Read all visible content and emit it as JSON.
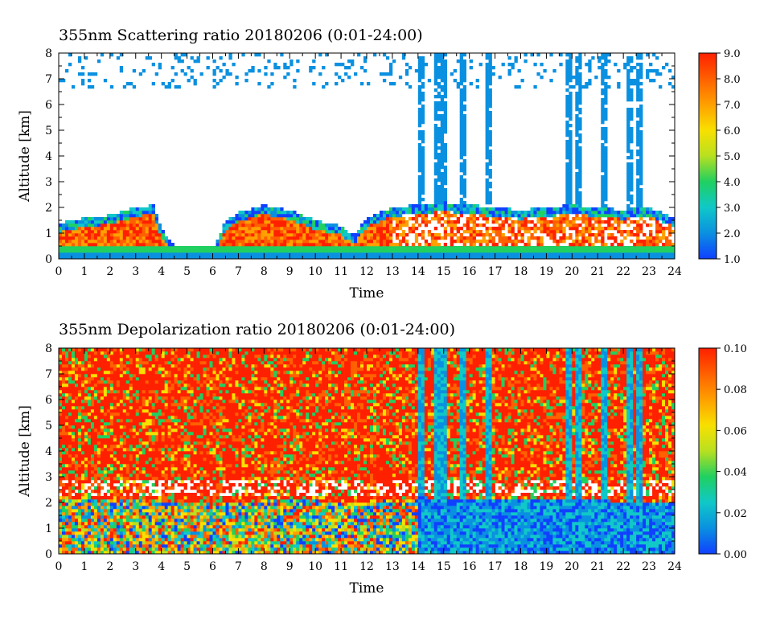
{
  "figure": {
    "panels": [
      {
        "title": "355nm Scattering ratio  20180206 (0:01-24:00)",
        "xlabel": "Time",
        "ylabel": "Altitude [km]"
      },
      {
        "title": "355nm Depolarization ratio  20180206 (0:01-24:00)",
        "xlabel": "Time",
        "ylabel": "Altitude [km]"
      }
    ]
  },
  "chart_data": [
    {
      "type": "heatmap",
      "title": "355nm Scattering ratio  20180206 (0:01-24:00)",
      "xlabel": "Time",
      "ylabel": "Altitude [km]",
      "xlim": [
        0,
        24
      ],
      "ylim": [
        0,
        8
      ],
      "x_ticks": [
        "0",
        "1",
        "2",
        "3",
        "4",
        "5",
        "6",
        "7",
        "8",
        "9",
        "10",
        "11",
        "12",
        "13",
        "14",
        "15",
        "16",
        "17",
        "18",
        "19",
        "20",
        "21",
        "22",
        "23",
        "24"
      ],
      "y_ticks": [
        "0",
        "1",
        "2",
        "3",
        "4",
        "5",
        "6",
        "7",
        "8"
      ],
      "colorbar": {
        "range": [
          1.0,
          9.0
        ],
        "tick_labels": [
          "1.0",
          "2.0",
          "3.0",
          "4.0",
          "5.0",
          "6.0",
          "7.0",
          "8.0",
          "9.0"
        ],
        "colors": [
          "#1040ff",
          "#0a90e0",
          "#10c8c8",
          "#20d060",
          "#b8e020",
          "#f8e000",
          "#ffa000",
          "#ff6000",
          "#ff2000"
        ]
      },
      "features": {
        "boundary_layer_top_km": [
          [
            0,
            1.4
          ],
          [
            1,
            1.6
          ],
          [
            2,
            1.7
          ],
          [
            3,
            2.0
          ],
          [
            3.7,
            2.1
          ],
          [
            4,
            1.2
          ],
          [
            4.5,
            0.5
          ],
          [
            5,
            0.3
          ],
          [
            6,
            0.3
          ],
          [
            6.5,
            1.5
          ],
          [
            7,
            1.8
          ],
          [
            8,
            2.1
          ],
          [
            9,
            1.9
          ],
          [
            10,
            1.5
          ],
          [
            11,
            1.3
          ],
          [
            11.5,
            0.9
          ],
          [
            12,
            1.6
          ],
          [
            13,
            2.0
          ],
          [
            14,
            2.1
          ],
          [
            15,
            2.2
          ],
          [
            16,
            2.1
          ],
          [
            17,
            2.0
          ],
          [
            18,
            1.9
          ],
          [
            19,
            2.0
          ],
          [
            20,
            2.1
          ],
          [
            21,
            2.0
          ],
          [
            22,
            1.9
          ],
          [
            23,
            2.0
          ],
          [
            24,
            1.6
          ]
        ],
        "high_altitude_streaks_hours": [
          14.1,
          14.7,
          15.05,
          15.7,
          16.8,
          19.9,
          20.3,
          21.2,
          22.2,
          22.6
        ]
      }
    },
    {
      "type": "heatmap",
      "title": "355nm Depolarization ratio  20180206 (0:01-24:00)",
      "xlabel": "Time",
      "ylabel": "Altitude [km]",
      "xlim": [
        0,
        24
      ],
      "ylim": [
        0,
        8
      ],
      "x_ticks": [
        "0",
        "1",
        "2",
        "3",
        "4",
        "5",
        "6",
        "7",
        "8",
        "9",
        "10",
        "11",
        "12",
        "13",
        "14",
        "15",
        "16",
        "17",
        "18",
        "19",
        "20",
        "21",
        "22",
        "23",
        "24"
      ],
      "y_ticks": [
        "0",
        "1",
        "2",
        "3",
        "4",
        "5",
        "6",
        "7",
        "8"
      ],
      "colorbar": {
        "range": [
          0.0,
          0.1
        ],
        "tick_labels": [
          "0.00",
          "0.02",
          "0.04",
          "0.06",
          "0.08",
          "0.10"
        ],
        "colors": [
          "#1040ff",
          "#0a90e0",
          "#10c8c8",
          "#20d060",
          "#b8e020",
          "#f8e000",
          "#ffa000",
          "#ff6000",
          "#ff2000"
        ]
      },
      "features": {
        "boundary_layer_top_km": [
          [
            0,
            2.2
          ],
          [
            3,
            2.1
          ],
          [
            6,
            2.0
          ],
          [
            9,
            2.1
          ],
          [
            12,
            2.0
          ],
          [
            14,
            2.2
          ],
          [
            17,
            2.1
          ],
          [
            20,
            2.1
          ],
          [
            24,
            2.0
          ]
        ],
        "high_altitude_streaks_hours": [
          14.1,
          14.7,
          15.05,
          15.7,
          16.8,
          19.9,
          20.3,
          21.2,
          22.2,
          22.6
        ]
      }
    }
  ]
}
